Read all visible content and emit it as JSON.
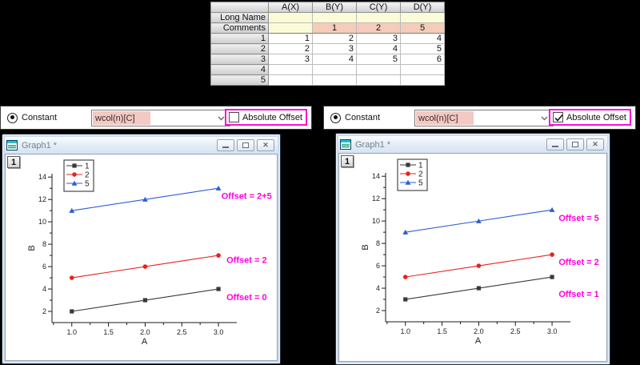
{
  "colors": {
    "highlight": "#f911d2",
    "annotation": "#ff00dd",
    "longname_bg": "#fbfbd8",
    "comments_bg": "#f5cbba",
    "combo_fill_bg": "#f2c9c3"
  },
  "worksheet": {
    "columns": [
      "",
      "A(X)",
      "B(Y)",
      "C(Y)",
      "D(Y)"
    ],
    "rows": [
      {
        "label": "Long Name",
        "cells": [
          "",
          "",
          "",
          ""
        ]
      },
      {
        "label": "Comments",
        "cells": [
          "",
          "1",
          "2",
          "5"
        ]
      },
      {
        "label": "1",
        "cells": [
          "1",
          "2",
          "3",
          "4"
        ]
      },
      {
        "label": "2",
        "cells": [
          "2",
          "3",
          "4",
          "5"
        ]
      },
      {
        "label": "3",
        "cells": [
          "3",
          "4",
          "5",
          "6"
        ]
      },
      {
        "label": "4",
        "cells": [
          "",
          "",
          "",
          ""
        ]
      },
      {
        "label": "5",
        "cells": [
          "",
          "",
          "",
          ""
        ]
      }
    ]
  },
  "panels": [
    {
      "radio_label": "Constant",
      "radio_selected": true,
      "combo_value": "wcol(n)[C]",
      "checkbox_label": "Absolute Offset",
      "checkbox_checked": false
    },
    {
      "radio_label": "Constant",
      "radio_selected": true,
      "combo_value": "wcol(n)[C]",
      "checkbox_label": "Absolute Offset",
      "checkbox_checked": true
    }
  ],
  "window_chrome": {
    "buttons": [
      "minimize-icon",
      "restore-icon",
      "close-icon"
    ]
  },
  "windows": [
    {
      "title": "Graph1 *",
      "layer_badge": "1"
    },
    {
      "title": "Graph1 *",
      "layer_badge": "1"
    }
  ],
  "chart_data": [
    {
      "type": "line",
      "title": "",
      "xlabel": "A",
      "ylabel": "B",
      "x": [
        1,
        2,
        3
      ],
      "series": [
        {
          "name": "1",
          "marker": "square",
          "color": "#3a3a3a",
          "values": [
            2,
            3,
            4
          ]
        },
        {
          "name": "2",
          "marker": "circle",
          "color": "#e8221f",
          "values": [
            5,
            6,
            7
          ]
        },
        {
          "name": "5",
          "marker": "triangle",
          "color": "#2e5cd5",
          "values": [
            11,
            12,
            13
          ]
        }
      ],
      "xticks": [
        1.0,
        1.5,
        2.0,
        2.5,
        3.0
      ],
      "yticks": [
        2,
        4,
        6,
        8,
        10,
        12,
        14
      ],
      "xlim": [
        0.73,
        3.25
      ],
      "ylim": [
        1.0,
        14.3
      ],
      "grid": false,
      "legend_position": "top-left-inside",
      "annotations": [
        {
          "text": "Offset = 2+5",
          "x": 3.04,
          "y": 12.35,
          "color": "#ff00dd"
        },
        {
          "text": "Offset = 2",
          "x": 3.11,
          "y": 6.6,
          "color": "#ff00dd"
        },
        {
          "text": "Offset = 0",
          "x": 3.11,
          "y": 3.3,
          "color": "#ff00dd"
        }
      ]
    },
    {
      "type": "line",
      "title": "",
      "xlabel": "A",
      "ylabel": "B",
      "x": [
        1,
        2,
        3
      ],
      "series": [
        {
          "name": "1",
          "marker": "square",
          "color": "#3a3a3a",
          "values": [
            3,
            4,
            5
          ]
        },
        {
          "name": "2",
          "marker": "circle",
          "color": "#e8221f",
          "values": [
            5,
            6,
            7
          ]
        },
        {
          "name": "5",
          "marker": "triangle",
          "color": "#2e5cd5",
          "values": [
            9,
            10,
            11
          ]
        }
      ],
      "xticks": [
        1.0,
        1.5,
        2.0,
        2.5,
        3.0
      ],
      "yticks": [
        2,
        4,
        6,
        8,
        10,
        12,
        14
      ],
      "xlim": [
        0.73,
        3.25
      ],
      "ylim": [
        1.0,
        14.3
      ],
      "grid": false,
      "legend_position": "top-left-inside",
      "annotations": [
        {
          "text": "Offset = 5",
          "x": 3.09,
          "y": 10.3,
          "color": "#ff00dd"
        },
        {
          "text": "Offset = 2",
          "x": 3.09,
          "y": 6.35,
          "color": "#ff00dd"
        },
        {
          "text": "Offset = 1",
          "x": 3.09,
          "y": 3.5,
          "color": "#ff00dd"
        }
      ]
    }
  ]
}
